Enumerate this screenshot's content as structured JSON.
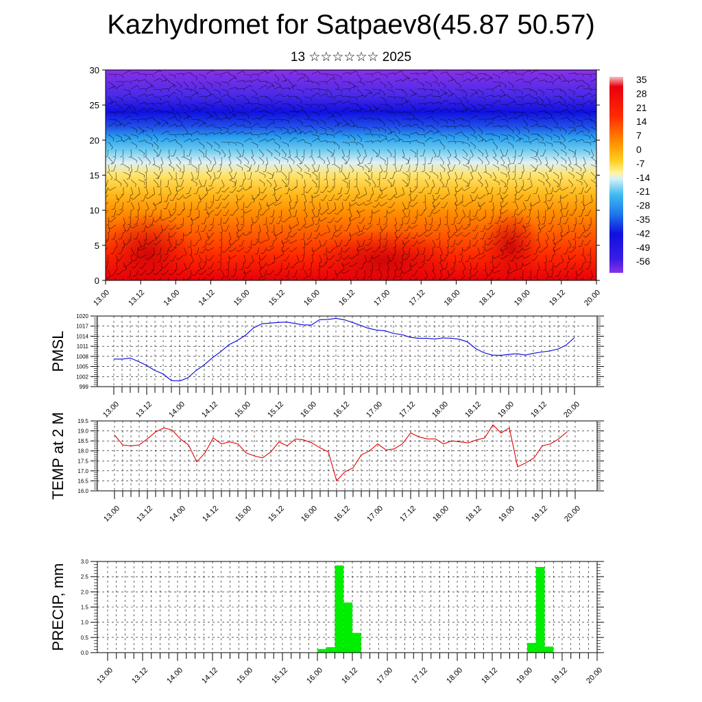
{
  "title": "Kazhydromet for Satpaev8(45.87 50.57)",
  "subtitle": "13 ☆☆☆☆☆☆ 2025",
  "chart_data": [
    {
      "type": "heatmap",
      "ylim": [
        0,
        30
      ],
      "yticks": [
        "0",
        "5",
        "10",
        "15",
        "20",
        "25",
        "30"
      ],
      "xticks": [
        "13.00",
        "13.12",
        "14.00",
        "14.12",
        "15.00",
        "15.12",
        "16.00",
        "16.12",
        "17.00",
        "17.12",
        "18.00",
        "18.12",
        "19.00",
        "19.12",
        "20.00"
      ],
      "colorbar_labels": [
        "35",
        "28",
        "21",
        "14",
        "7",
        "0",
        "-7",
        "-14",
        "-21",
        "-28",
        "-35",
        "-42",
        "-49",
        "-56"
      ],
      "colors": {
        "hot": "#e8000a",
        "warm": "#ff8c00",
        "mild": "#ffe040",
        "cool": "#3cb4f0",
        "cold": "#1010e8",
        "coldest": "#8a30e8"
      }
    },
    {
      "type": "line",
      "ylabel": "PMSL",
      "ylim": [
        999,
        1020
      ],
      "yticks": [
        "999",
        "1002",
        "1005",
        "1008",
        "1011",
        "1014",
        "1017",
        "1020"
      ],
      "xticks": [
        "13.00",
        "13.12",
        "14.00",
        "14.12",
        "15.00",
        "15.12",
        "16.00",
        "16.12",
        "17.00",
        "17.12",
        "18.00",
        "18.12",
        "19.00",
        "19.12",
        "20.00"
      ],
      "x": [
        0,
        3,
        6,
        9,
        12,
        15,
        18,
        21,
        24,
        27,
        30,
        33,
        36,
        39,
        42,
        45,
        48,
        51,
        54,
        57,
        60,
        63,
        66,
        69,
        72,
        75,
        78,
        81,
        84,
        87,
        90,
        93,
        96,
        99,
        102,
        105,
        108,
        111,
        114,
        117,
        120,
        123,
        126,
        129,
        132,
        135,
        138,
        141,
        144,
        147,
        150,
        153,
        156,
        159,
        162,
        165,
        168
      ],
      "series": [
        {
          "color": "#0000e0",
          "values": [
            1007.2,
            1007.2,
            1007.5,
            1006.5,
            1005.3,
            1003.8,
            1002.8,
            1000.8,
            1000.7,
            1001.6,
            1003.8,
            1005.5,
            1007.6,
            1009.4,
            1011.5,
            1012.7,
            1014.3,
            1016.5,
            1017.7,
            1017.9,
            1018.1,
            1018.2,
            1017.8,
            1017.4,
            1017.3,
            1018.9,
            1019.0,
            1019.3,
            1018.9,
            1018.1,
            1017.2,
            1016.3,
            1015.8,
            1015.6,
            1014.8,
            1014.5,
            1013.7,
            1013.4,
            1013.4,
            1013.2,
            1013.5,
            1013.4,
            1013.1,
            1012.3,
            1010.3,
            1009.1,
            1008.4,
            1008.3,
            1008.6,
            1008.8,
            1008.4,
            1008.9,
            1009.3,
            1009.6,
            1010.2,
            1011.4,
            1013.6
          ]
        }
      ]
    },
    {
      "type": "line",
      "ylabel": "TEMP at 2 M",
      "ylim": [
        16.0,
        19.5
      ],
      "yticks": [
        "16.0",
        "16.5",
        "17.0",
        "17.5",
        "18.0",
        "18.5",
        "19.0",
        "19.5"
      ],
      "xticks": [
        "13.00",
        "13.12",
        "14.00",
        "14.12",
        "15.00",
        "15.12",
        "16.00",
        "16.12",
        "17.00",
        "17.12",
        "18.00",
        "18.12",
        "19.00",
        "19.12",
        "20.00"
      ],
      "x": [
        0,
        3,
        6,
        9,
        12,
        15,
        18,
        21,
        24,
        27,
        30,
        33,
        36,
        39,
        42,
        45,
        48,
        51,
        54,
        57,
        60,
        63,
        66,
        69,
        72,
        75,
        78,
        81,
        84,
        87,
        90,
        93,
        96,
        99,
        102,
        105,
        108,
        111,
        114,
        117,
        120,
        123,
        126,
        129,
        132,
        135,
        138,
        141,
        144,
        147,
        150,
        153,
        156,
        159,
        162,
        165
      ],
      "series": [
        {
          "color": "#e00000",
          "values": [
            18.8,
            18.3,
            18.25,
            18.3,
            18.6,
            18.95,
            19.15,
            19.05,
            18.6,
            18.3,
            17.45,
            17.9,
            18.65,
            18.35,
            18.45,
            18.35,
            17.9,
            17.75,
            17.65,
            17.95,
            18.45,
            18.25,
            18.6,
            18.55,
            18.4,
            18.15,
            17.95,
            16.5,
            16.95,
            17.15,
            17.8,
            18.0,
            18.35,
            18.05,
            18.1,
            18.35,
            18.9,
            18.7,
            18.6,
            18.6,
            18.35,
            18.5,
            18.45,
            18.4,
            18.55,
            18.65,
            19.3,
            18.9,
            19.15,
            17.2,
            17.4,
            17.65,
            18.25,
            18.35,
            18.6,
            18.95
          ]
        }
      ]
    },
    {
      "type": "bar",
      "ylabel": "PRECIP, mm",
      "ylim": [
        0.0,
        3.0
      ],
      "yticks": [
        "0.0",
        "0.5",
        "1.0",
        "1.5",
        "2.0",
        "2.5",
        "3.0"
      ],
      "xticks": [
        "13.00",
        "13.12",
        "14.00",
        "14.12",
        "15.00",
        "15.12",
        "16.00",
        "16.12",
        "17.00",
        "17.12",
        "18.00",
        "18.12",
        "19.00",
        "19.12",
        "20.00"
      ],
      "bar_color": "#00ee00",
      "x": [
        72,
        75,
        78,
        81,
        84,
        144,
        147,
        150
      ],
      "values": [
        0.12,
        0.18,
        2.87,
        1.65,
        0.65,
        0.32,
        2.82,
        0.2
      ]
    }
  ]
}
